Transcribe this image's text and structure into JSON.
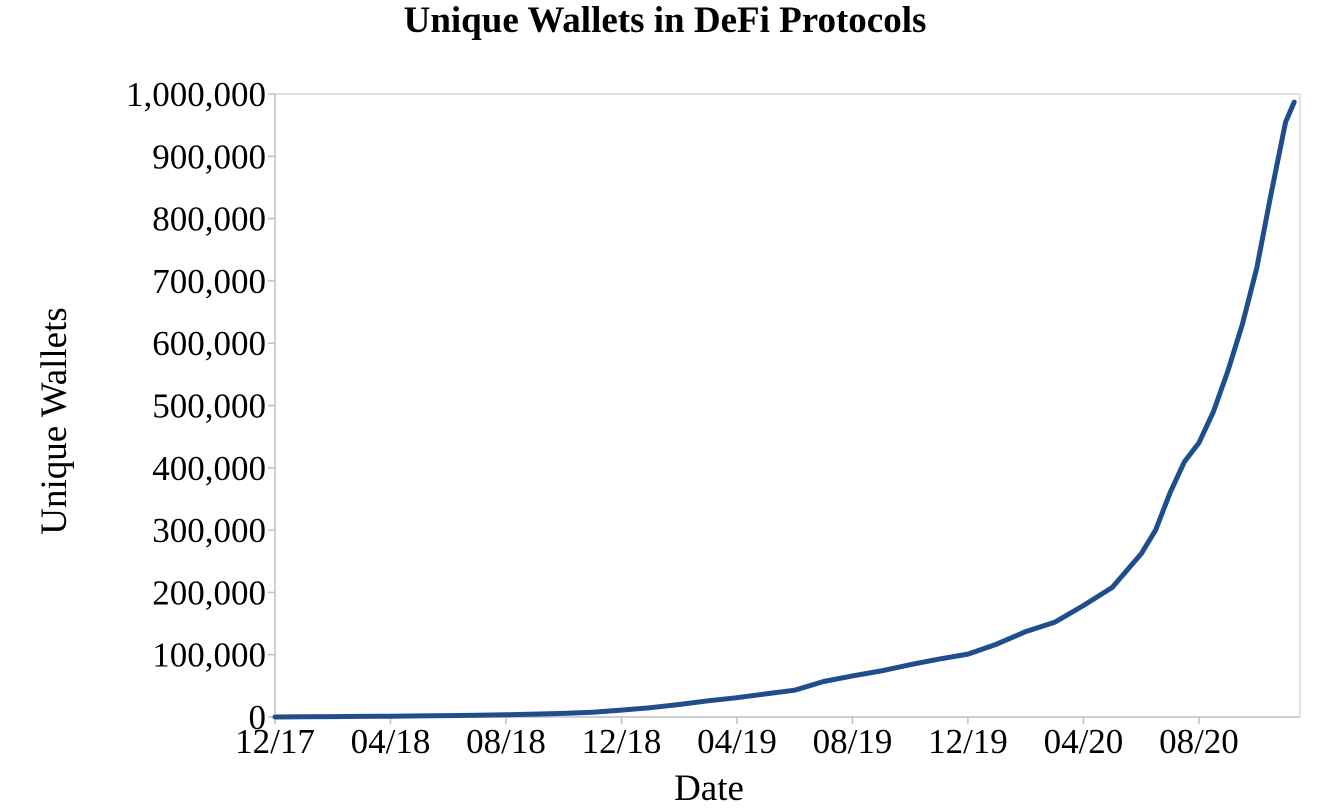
{
  "chart_data": {
    "type": "line",
    "title": "Unique Wallets in DeFi Protocols",
    "xlabel": "Date",
    "ylabel": "Unique Wallets",
    "ylim": [
      0,
      1000000
    ],
    "grid": false,
    "legend": "none",
    "line_color": "#1f4e8c",
    "x_tick_labels": [
      "12/17",
      "04/18",
      "08/18",
      "12/18",
      "04/19",
      "08/19",
      "12/19",
      "04/20",
      "08/20"
    ],
    "y_tick_labels": [
      "0",
      "100,000",
      "200,000",
      "300,000",
      "400,000",
      "500,000",
      "600,000",
      "700,000",
      "800,000",
      "900,000",
      "1,000,000"
    ],
    "x_range_months": [
      0,
      35.5
    ],
    "series": [
      {
        "name": "Unique Wallets",
        "x": [
          0,
          1,
          2,
          3,
          4,
          5,
          6,
          7,
          8,
          9,
          10,
          11,
          12,
          13,
          14,
          15,
          16,
          17,
          18,
          19,
          20,
          21,
          22,
          23,
          24,
          25,
          26,
          27,
          28,
          29,
          30,
          30.5,
          31,
          31.5,
          32,
          32.5,
          33,
          33.5,
          34,
          34.5,
          35,
          35.3
        ],
        "values": [
          0,
          300,
          600,
          900,
          1300,
          1700,
          2200,
          2800,
          3600,
          4600,
          5800,
          7500,
          11000,
          15000,
          20000,
          26000,
          31000,
          37000,
          43000,
          57000,
          66000,
          74000,
          84000,
          93000,
          101000,
          117000,
          137000,
          152000,
          179000,
          208000,
          262000,
          300000,
          360000,
          410000,
          440000,
          490000,
          555000,
          630000,
          720000,
          840000,
          955000,
          987000
        ]
      }
    ]
  }
}
